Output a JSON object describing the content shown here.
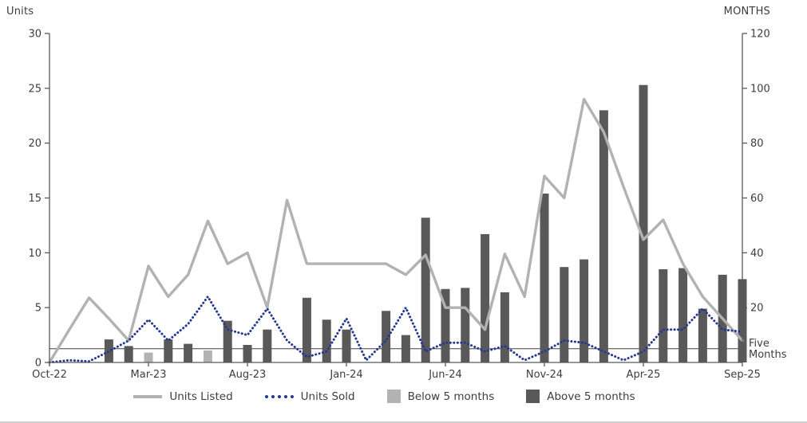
{
  "axes": {
    "left_title": "Units",
    "right_title": "MONTHS",
    "left_ticks": [
      "30",
      "25",
      "20",
      "15",
      "10",
      "5",
      "0"
    ],
    "right_ticks": [
      "120",
      "100",
      "80",
      "60",
      "40",
      "20"
    ],
    "x_ticks": [
      "Oct-22",
      "Mar-23",
      "Aug-23",
      "Jan-24",
      "Jun-24",
      "Nov-24",
      "Apr-25",
      "Sep-25"
    ],
    "five_months_label_line1": "Five",
    "five_months_label_line2": "Months"
  },
  "legend": {
    "units_listed": "Units Listed",
    "units_sold": "Units Sold",
    "below_5": "Below 5 months",
    "above_5": "Above 5 months"
  },
  "colors": {
    "units_listed_line": "#b2b2b2",
    "units_sold_line": "#24388f",
    "below_5_months_bar": "#b3b3b3",
    "above_5_months_bar": "#595959",
    "axis": "#595959",
    "text": "#3d3d3d",
    "reference_line": "#404040"
  },
  "chart_data": {
    "type": "combo-line-bar",
    "title": "",
    "grid": false,
    "legend_position": "bottom",
    "x": [
      "Oct-22",
      "Nov-22",
      "Dec-22",
      "Jan-23",
      "Feb-23",
      "Mar-23",
      "Apr-23",
      "May-23",
      "Jun-23",
      "Jul-23",
      "Aug-23",
      "Sep-23",
      "Oct-23",
      "Nov-23",
      "Dec-23",
      "Jan-24",
      "Feb-24",
      "Mar-24",
      "Apr-24",
      "May-24",
      "Jun-24",
      "Jul-24",
      "Aug-24",
      "Sep-24",
      "Oct-24",
      "Nov-24",
      "Dec-24",
      "Jan-25",
      "Feb-25",
      "Mar-25",
      "Apr-25",
      "May-25",
      "Jun-25",
      "Jul-25",
      "Aug-25",
      "Sep-25"
    ],
    "left_axis": {
      "title": "Units",
      "min": 0,
      "max": 30,
      "tick_step": 5
    },
    "right_axis": {
      "title": "MONTHS",
      "min": 0,
      "max": 120,
      "tick_step": 20
    },
    "reference_line": {
      "axis": "right",
      "value": 5,
      "label": "Five Months"
    },
    "series": [
      {
        "name": "Units Listed",
        "type": "line",
        "line_style": "solid",
        "axis": "left",
        "color": "#b2b2b2",
        "values": [
          0,
          3,
          5.9,
          4,
          2,
          8.8,
          6,
          8,
          12.9,
          9,
          10,
          5,
          14.8,
          9,
          9,
          9,
          9,
          9,
          8,
          9.8,
          5,
          5,
          3,
          9.9,
          6,
          17,
          15,
          24,
          21,
          16,
          11.2,
          13,
          9,
          6,
          4,
          2
        ]
      },
      {
        "name": "Units Sold",
        "type": "line",
        "line_style": "dotted",
        "axis": "left",
        "color": "#24388f",
        "values": [
          0,
          0.2,
          0.1,
          1,
          2,
          3.9,
          2,
          3.5,
          6,
          3,
          2.5,
          4.9,
          2,
          0.5,
          1,
          4,
          0.2,
          2,
          5,
          1,
          1.8,
          1.8,
          1,
          1.5,
          0.2,
          1,
          2,
          1.8,
          1,
          0.2,
          1,
          3,
          3,
          4.9,
          3,
          2.8
        ]
      },
      {
        "name": "Below 5 months",
        "type": "bar",
        "axis": "right",
        "color": "#b3b3b3",
        "values": [
          null,
          null,
          null,
          null,
          null,
          3.6,
          null,
          null,
          4.4,
          null,
          null,
          null,
          null,
          null,
          null,
          null,
          null,
          null,
          null,
          null,
          null,
          null,
          null,
          null,
          null,
          null,
          null,
          null,
          null,
          null,
          null,
          null,
          null,
          null,
          null,
          null
        ]
      },
      {
        "name": "Above 5 months",
        "type": "bar",
        "axis": "right",
        "color": "#595959",
        "values": [
          null,
          null,
          null,
          8.4,
          6,
          null,
          8.4,
          6.8,
          null,
          15.2,
          6.4,
          12,
          null,
          23.6,
          15.6,
          12,
          null,
          18.8,
          10,
          52.8,
          26.8,
          27.2,
          46.8,
          25.6,
          null,
          61.6,
          34.8,
          37.6,
          92,
          null,
          101.2,
          34,
          34.4,
          19.6,
          32,
          30.4
        ]
      }
    ]
  }
}
